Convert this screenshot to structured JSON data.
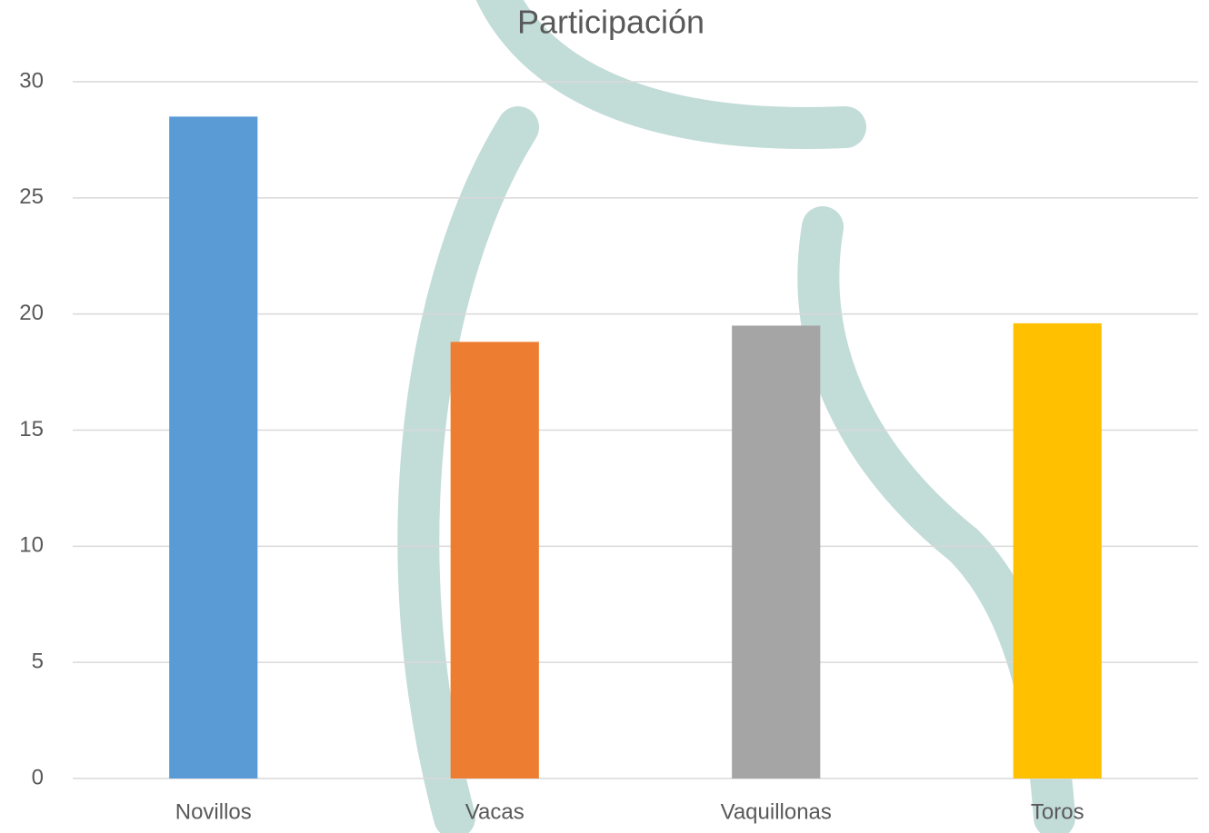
{
  "chart_data": {
    "type": "bar",
    "title": "Participación",
    "categories": [
      "Novillos",
      "Vacas",
      "Vaquillonas",
      "Toros"
    ],
    "values": [
      28.5,
      18.8,
      19.5,
      19.6
    ],
    "colors": [
      "#5b9bd5",
      "#ed7d31",
      "#a5a5a5",
      "#ffc000"
    ],
    "ylim": [
      0,
      30
    ],
    "yticks": [
      0,
      5,
      10,
      15,
      20,
      25,
      30
    ],
    "grid": true
  }
}
